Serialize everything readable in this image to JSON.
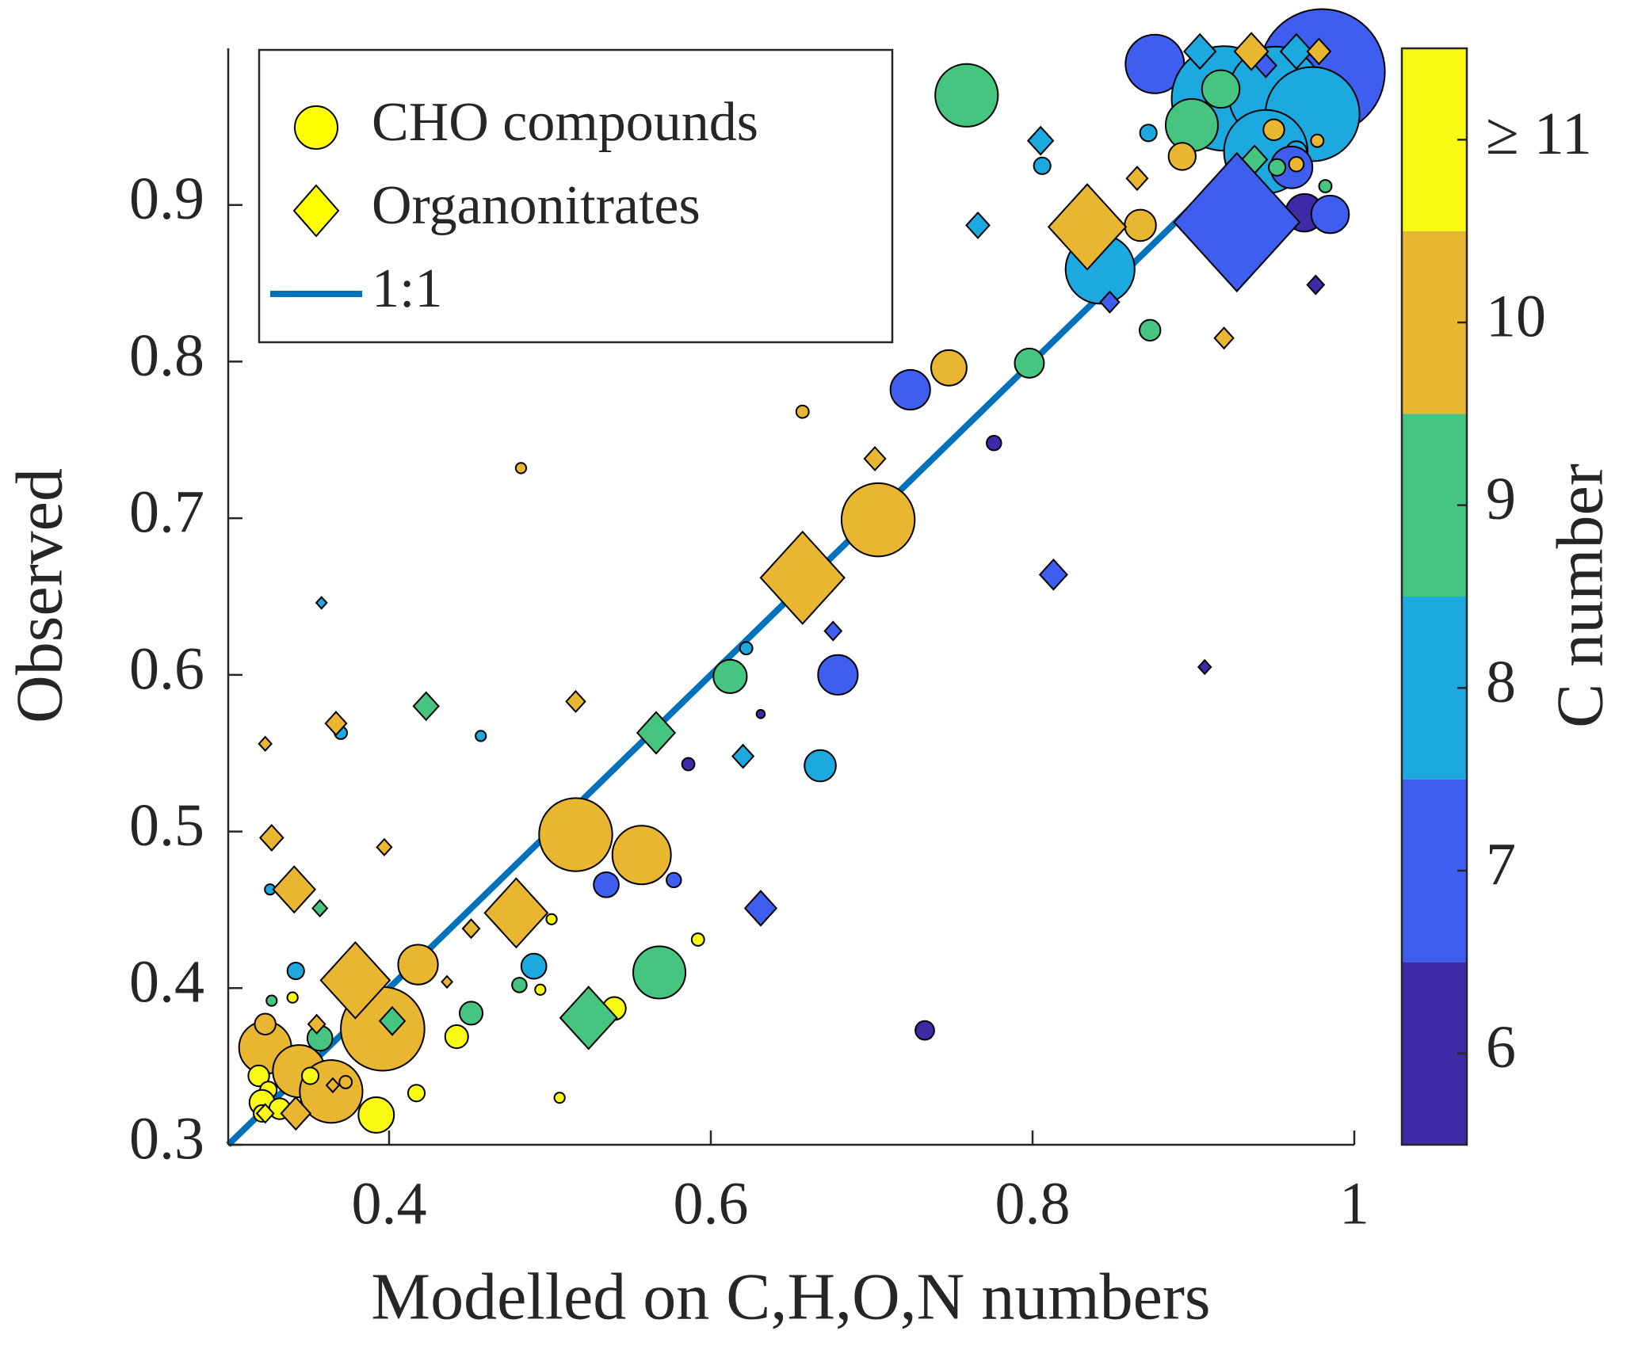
{
  "chart_data": {
    "type": "scatter",
    "xlabel": "Modelled on C,H,O,N numbers",
    "ylabel": "Observed",
    "xlim": [
      0.3,
      1
    ],
    "ylim": [
      0.3,
      1
    ],
    "xticks": [
      0.4,
      0.6,
      0.8,
      1
    ],
    "yticks": [
      0.3,
      0.4,
      0.5,
      0.6,
      0.7,
      0.8,
      0.9
    ],
    "legend_position": "upper-left",
    "legend_marker_color": "#ffff00",
    "colorbar": {
      "label": "C number",
      "clim": [
        5.5,
        11.5
      ],
      "ticks": [
        6,
        7,
        8,
        9,
        10,
        {
          "value": 11,
          "label": "≥ 11"
        }
      ],
      "colors": [
        "#3d2aa6",
        "#3e5ef0",
        "#1ca9df",
        "#45c580",
        "#e8b630",
        "#f8fa13"
      ]
    },
    "series": [
      {
        "name": "CHO compounds",
        "marker": "circle",
        "x": [
          0.759,
          0.876,
          0.98,
          0.919,
          0.951,
          0.974,
          0.945,
          0.917,
          0.899,
          0.893,
          0.872,
          0.95,
          0.964,
          0.969,
          0.985,
          0.961,
          0.952,
          0.964,
          0.982,
          0.977,
          0.806,
          0.867,
          0.842,
          0.873,
          0.748,
          0.724,
          0.798,
          0.657,
          0.776,
          0.704,
          0.482,
          0.679,
          0.612,
          0.622,
          0.631,
          0.668,
          0.586,
          0.457,
          0.37,
          0.516,
          0.557,
          0.535,
          0.577,
          0.568,
          0.592,
          0.49,
          0.481,
          0.501,
          0.494,
          0.54,
          0.733,
          0.506,
          0.418,
          0.396,
          0.451,
          0.442,
          0.417,
          0.392,
          0.342,
          0.326,
          0.327,
          0.34,
          0.323,
          0.344,
          0.364,
          0.323,
          0.357,
          0.319,
          0.325,
          0.321,
          0.332,
          0.351,
          0.373,
          0.321
        ],
        "values": [
          0.97,
          0.99,
          0.985,
          0.968,
          0.971,
          0.958,
          0.934,
          0.974,
          0.951,
          0.931,
          0.946,
          0.948,
          0.934,
          0.895,
          0.894,
          0.924,
          0.924,
          0.926,
          0.912,
          0.941,
          0.925,
          0.887,
          0.859,
          0.82,
          0.796,
          0.782,
          0.799,
          0.768,
          0.748,
          0.699,
          0.732,
          0.6,
          0.599,
          0.617,
          0.575,
          0.542,
          0.543,
          0.561,
          0.563,
          0.498,
          0.485,
          0.466,
          0.469,
          0.41,
          0.431,
          0.414,
          0.402,
          0.444,
          0.399,
          0.387,
          0.373,
          0.33,
          0.415,
          0.374,
          0.384,
          0.369,
          0.333,
          0.319,
          0.411,
          0.463,
          0.392,
          0.394,
          0.362,
          0.347,
          0.334,
          0.377,
          0.368,
          0.344,
          0.335,
          0.327,
          0.323,
          0.344,
          0.34,
          0.32
        ],
        "sizes": [
          30,
          28,
          60,
          50,
          45,
          45,
          40,
          18,
          25,
          13,
          8,
          10,
          10,
          18,
          18,
          20,
          8,
          7,
          6,
          6,
          8,
          15,
          33,
          10,
          17,
          19,
          14,
          6,
          7,
          35,
          5,
          19,
          16,
          6,
          4,
          15,
          6,
          5,
          6,
          35,
          28,
          12,
          7,
          25,
          6,
          12,
          7,
          5,
          5,
          11,
          9,
          5,
          19,
          40,
          11,
          11,
          8,
          17,
          8,
          5,
          5,
          5,
          25,
          25,
          30,
          10,
          12,
          10,
          8,
          12,
          10,
          8,
          6,
          8
        ],
        "c": [
          9,
          7,
          7,
          8,
          8,
          8,
          8,
          9,
          9,
          10,
          8,
          10,
          8,
          6,
          7,
          7,
          9,
          10,
          9,
          10,
          8,
          10,
          8,
          9,
          10,
          7,
          9,
          10,
          6,
          10,
          10,
          7,
          9,
          8,
          6,
          8,
          6,
          8,
          8,
          10,
          10,
          7,
          7,
          9,
          11,
          8,
          9,
          11,
          11,
          11,
          6,
          11,
          10,
          10,
          9,
          11,
          11,
          11,
          8,
          8,
          9,
          11,
          10,
          10,
          10,
          10,
          9,
          11,
          11,
          11,
          11,
          11,
          10,
          11
        ]
      },
      {
        "name": "Organonitrates",
        "marker": "diamond",
        "x": [
          0.904,
          0.936,
          0.964,
          0.978,
          0.945,
          0.805,
          0.766,
          0.924,
          0.938,
          0.927,
          0.834,
          0.865,
          0.919,
          0.976,
          0.848,
          0.702,
          0.657,
          0.813,
          0.676,
          0.907,
          0.566,
          0.62,
          0.516,
          0.423,
          0.367,
          0.358,
          0.323,
          0.327,
          0.341,
          0.357,
          0.479,
          0.631,
          0.397,
          0.451,
          0.436,
          0.379,
          0.402,
          0.524,
          0.355,
          0.365,
          0.342,
          0.323
        ],
        "values": [
          0.998,
          0.998,
          0.998,
          0.998,
          0.989,
          0.941,
          0.887,
          0.914,
          0.929,
          0.889,
          0.886,
          0.917,
          0.815,
          0.849,
          0.838,
          0.738,
          0.662,
          0.664,
          0.628,
          0.605,
          0.563,
          0.548,
          0.583,
          0.58,
          0.569,
          0.646,
          0.556,
          0.496,
          0.463,
          0.451,
          0.448,
          0.451,
          0.49,
          0.438,
          0.404,
          0.405,
          0.379,
          0.381,
          0.377,
          0.338,
          0.32,
          0.32
        ],
        "sizes": [
          15,
          16,
          15,
          11,
          10,
          12,
          11,
          16,
          12,
          60,
          37,
          10,
          9,
          8,
          9,
          10,
          40,
          13,
          8,
          6,
          18,
          10,
          9,
          12,
          10,
          5,
          6,
          11,
          20,
          7,
          30,
          15,
          7,
          8,
          5,
          33,
          12,
          27,
          8,
          6,
          14,
          8
        ],
        "c": [
          8,
          10,
          8,
          10,
          7,
          8,
          8,
          8,
          9,
          7,
          10,
          10,
          10,
          6,
          7,
          10,
          10,
          7,
          7,
          6,
          9,
          8,
          10,
          9,
          10,
          8,
          10,
          10,
          10,
          9,
          10,
          7,
          10,
          10,
          10,
          10,
          9,
          9,
          10,
          10,
          10,
          11
        ]
      },
      {
        "name": "1:1",
        "marker": "line",
        "color": "#0072bd",
        "x": [
          0.3,
          1
        ],
        "values": [
          0.3,
          1
        ]
      }
    ]
  }
}
